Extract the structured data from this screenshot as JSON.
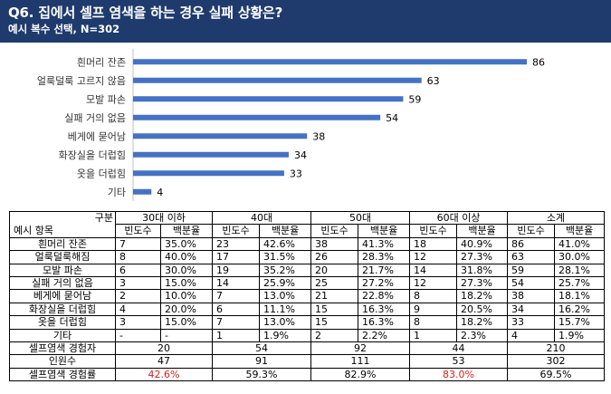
{
  "header": {
    "title": "Q6. 집에서 셀프 염색을 하는 경우 실패 상황은?",
    "subtitle": "예시 복수 선택, N=302"
  },
  "chart_data": {
    "type": "bar",
    "orientation": "horizontal",
    "title": "Q6. 집에서 셀프 염색을 하는 경우 실패 상황은?",
    "categories": [
      "흰머리 잔존",
      "얼룩덜룩 고르지 않음",
      "모발 파손",
      "실패 거의 없음",
      "베게에 묻어남",
      "화장실을 더럽힘",
      "옷을 더럽힘",
      "기타"
    ],
    "values": [
      86,
      63,
      59,
      54,
      38,
      34,
      33,
      4
    ],
    "xlim": [
      0,
      90
    ],
    "color": "#4472c4"
  },
  "table": {
    "corner_top": "구분",
    "corner_bottom": "예시 항목",
    "groups": [
      "30대 이하",
      "40대",
      "50대",
      "60대 이상",
      "소계"
    ],
    "subheaders": [
      "빈도수",
      "백분율"
    ],
    "rows": [
      {
        "label": "흰머리 잔존",
        "cells": [
          "7",
          "35.0%",
          "23",
          "42.6%",
          "38",
          "41.3%",
          "18",
          "40.9%",
          "86",
          "41.0%"
        ]
      },
      {
        "label": "얼룩덜룩해짐",
        "cells": [
          "8",
          "40.0%",
          "17",
          "31.5%",
          "26",
          "28.3%",
          "12",
          "27.3%",
          "63",
          "30.0%"
        ]
      },
      {
        "label": "모발 파손",
        "cells": [
          "6",
          "30.0%",
          "19",
          "35.2%",
          "20",
          "21.7%",
          "14",
          "31.8%",
          "59",
          "28.1%"
        ]
      },
      {
        "label": "실패 거의 없음",
        "cells": [
          "3",
          "15.0%",
          "14",
          "25.9%",
          "25",
          "27.2%",
          "12",
          "27.3%",
          "54",
          "25.7%"
        ]
      },
      {
        "label": "베게에 묻어남",
        "cells": [
          "2",
          "10.0%",
          "7",
          "13.0%",
          "21",
          "22.8%",
          "8",
          "18.2%",
          "38",
          "18.1%"
        ]
      },
      {
        "label": "화장실을 더럽힘",
        "cells": [
          "4",
          "20.0%",
          "6",
          "11.1%",
          "15",
          "16.3%",
          "9",
          "20.5%",
          "34",
          "16.2%"
        ]
      },
      {
        "label": "옷을 더럽힘",
        "cells": [
          "3",
          "15.0%",
          "7",
          "13.0%",
          "15",
          "16.3%",
          "8",
          "18.2%",
          "33",
          "15.7%"
        ]
      },
      {
        "label": "기타",
        "cells": [
          "-",
          "-",
          "1",
          "1.9%",
          "2",
          "2.2%",
          "1",
          "2.3%",
          "4",
          "1.9%"
        ]
      }
    ],
    "summary": [
      {
        "label": "셀프염색 경험자",
        "cells": [
          "20",
          "54",
          "92",
          "44",
          "210"
        ]
      },
      {
        "label": "인원수",
        "cells": [
          "47",
          "91",
          "111",
          "53",
          "302"
        ]
      },
      {
        "label": "셀프염색 경험률",
        "cells": [
          "42.6%",
          "59.3%",
          "82.9%",
          "83.0%",
          "69.5%"
        ]
      }
    ],
    "highlight_color": "#e0201b"
  }
}
